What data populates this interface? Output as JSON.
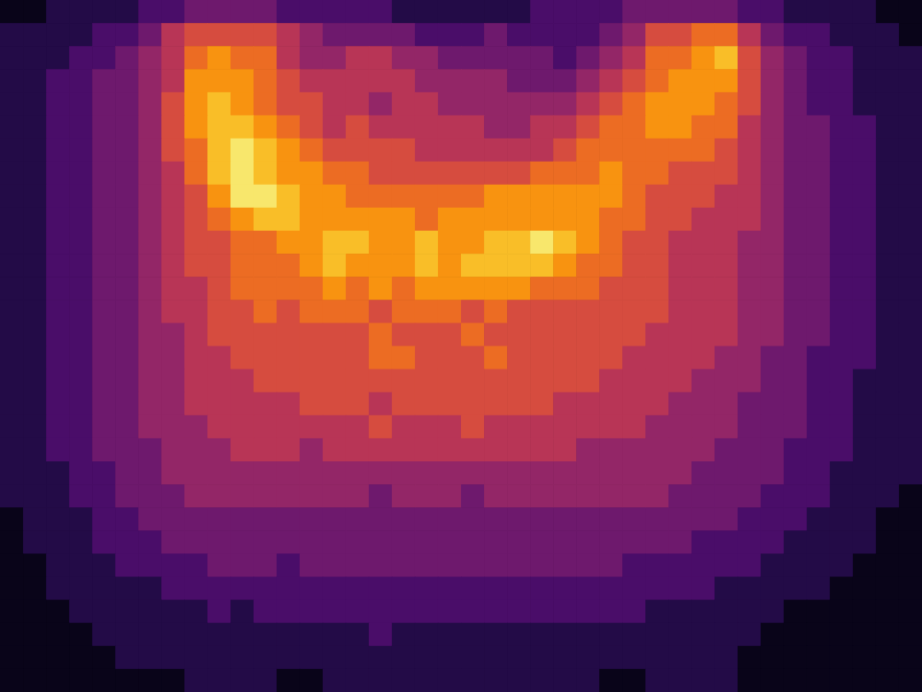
{
  "chart_data": {
    "type": "heatmap",
    "tick_labels": false,
    "cells": [
      [
        0,
        0,
        1,
        1,
        1,
        1,
        2,
        2,
        3,
        3,
        3,
        3,
        2,
        2,
        2,
        2,
        2,
        1,
        1,
        1,
        1,
        1,
        1,
        2,
        2,
        2,
        2,
        3,
        3,
        3,
        3,
        3,
        2,
        2,
        1,
        1,
        1,
        1,
        0,
        0
      ],
      [
        1,
        1,
        1,
        1,
        2,
        2,
        3,
        5,
        6,
        6,
        6,
        6,
        5,
        4,
        3,
        3,
        3,
        3,
        2,
        2,
        2,
        3,
        2,
        2,
        2,
        2,
        3,
        4,
        6,
        6,
        7,
        7,
        5,
        3,
        2,
        2,
        1,
        1,
        1,
        0
      ],
      [
        1,
        1,
        1,
        2,
        2,
        3,
        4,
        5,
        7,
        8,
        7,
        7,
        5,
        4,
        4,
        5,
        5,
        4,
        4,
        3,
        3,
        3,
        3,
        3,
        2,
        3,
        4,
        5,
        7,
        7,
        8,
        9,
        6,
        4,
        3,
        2,
        2,
        1,
        1,
        1
      ],
      [
        1,
        1,
        2,
        2,
        3,
        3,
        4,
        5,
        8,
        8,
        8,
        7,
        6,
        5,
        5,
        5,
        5,
        5,
        4,
        4,
        4,
        4,
        3,
        3,
        3,
        4,
        5,
        6,
        7,
        8,
        8,
        8,
        6,
        4,
        3,
        2,
        2,
        1,
        1,
        1
      ],
      [
        1,
        1,
        2,
        2,
        3,
        3,
        4,
        6,
        8,
        9,
        8,
        7,
        6,
        6,
        5,
        5,
        4,
        5,
        5,
        4,
        4,
        4,
        4,
        4,
        4,
        5,
        6,
        7,
        8,
        8,
        8,
        7,
        6,
        4,
        3,
        2,
        2,
        1,
        1,
        1
      ],
      [
        1,
        1,
        2,
        2,
        3,
        3,
        4,
        6,
        8,
        9,
        9,
        8,
        7,
        6,
        5,
        6,
        5,
        5,
        5,
        5,
        5,
        4,
        4,
        5,
        5,
        6,
        7,
        7,
        8,
        8,
        7,
        7,
        5,
        4,
        3,
        3,
        2,
        2,
        1,
        1
      ],
      [
        1,
        1,
        2,
        2,
        3,
        3,
        4,
        6,
        7,
        9,
        10,
        9,
        8,
        7,
        6,
        6,
        6,
        6,
        5,
        5,
        5,
        5,
        5,
        5,
        6,
        7,
        7,
        7,
        7,
        7,
        7,
        6,
        5,
        4,
        3,
        3,
        2,
        2,
        1,
        1
      ],
      [
        1,
        1,
        2,
        2,
        3,
        3,
        4,
        5,
        7,
        9,
        10,
        9,
        8,
        8,
        7,
        7,
        6,
        6,
        6,
        6,
        6,
        6,
        6,
        7,
        7,
        7,
        8,
        7,
        7,
        6,
        6,
        6,
        5,
        4,
        3,
        3,
        2,
        2,
        1,
        1
      ],
      [
        1,
        1,
        2,
        2,
        3,
        3,
        4,
        5,
        6,
        8,
        10,
        10,
        9,
        8,
        8,
        7,
        7,
        7,
        7,
        7,
        7,
        8,
        8,
        8,
        8,
        8,
        8,
        7,
        6,
        6,
        6,
        5,
        5,
        4,
        3,
        3,
        2,
        2,
        1,
        1
      ],
      [
        1,
        1,
        2,
        2,
        3,
        3,
        4,
        5,
        6,
        7,
        8,
        9,
        9,
        8,
        8,
        8,
        8,
        8,
        7,
        8,
        8,
        8,
        8,
        8,
        8,
        8,
        7,
        7,
        6,
        6,
        5,
        5,
        5,
        4,
        3,
        3,
        2,
        2,
        1,
        1
      ],
      [
        1,
        1,
        2,
        2,
        3,
        3,
        4,
        5,
        6,
        6,
        7,
        7,
        8,
        8,
        9,
        9,
        8,
        8,
        9,
        8,
        8,
        9,
        9,
        10,
        9,
        8,
        7,
        6,
        6,
        5,
        5,
        5,
        4,
        4,
        3,
        3,
        2,
        2,
        1,
        1
      ],
      [
        1,
        1,
        2,
        2,
        3,
        3,
        4,
        5,
        6,
        6,
        7,
        7,
        7,
        8,
        9,
        8,
        8,
        8,
        9,
        8,
        9,
        9,
        9,
        9,
        8,
        7,
        7,
        6,
        6,
        5,
        5,
        5,
        4,
        4,
        3,
        3,
        2,
        2,
        1,
        1
      ],
      [
        1,
        1,
        2,
        2,
        3,
        3,
        4,
        5,
        5,
        6,
        7,
        7,
        7,
        7,
        8,
        7,
        8,
        7,
        8,
        8,
        8,
        8,
        8,
        7,
        7,
        7,
        6,
        6,
        6,
        5,
        5,
        5,
        4,
        4,
        3,
        3,
        2,
        2,
        1,
        1
      ],
      [
        1,
        1,
        2,
        2,
        3,
        3,
        4,
        5,
        5,
        6,
        6,
        7,
        6,
        7,
        7,
        7,
        6,
        7,
        7,
        7,
        6,
        7,
        6,
        6,
        6,
        6,
        6,
        6,
        6,
        5,
        5,
        5,
        4,
        4,
        3,
        3,
        2,
        2,
        1,
        1
      ],
      [
        1,
        1,
        2,
        2,
        3,
        3,
        4,
        4,
        5,
        6,
        6,
        6,
        6,
        6,
        6,
        6,
        7,
        6,
        6,
        6,
        7,
        6,
        6,
        6,
        6,
        6,
        6,
        6,
        5,
        5,
        5,
        5,
        4,
        4,
        3,
        3,
        2,
        2,
        1,
        1
      ],
      [
        1,
        1,
        2,
        2,
        3,
        3,
        4,
        4,
        5,
        5,
        6,
        6,
        6,
        6,
        6,
        6,
        7,
        7,
        6,
        6,
        6,
        7,
        6,
        6,
        6,
        6,
        6,
        5,
        5,
        5,
        5,
        4,
        4,
        3,
        3,
        2,
        2,
        2,
        1,
        1
      ],
      [
        1,
        1,
        2,
        2,
        3,
        3,
        4,
        4,
        5,
        5,
        5,
        6,
        6,
        6,
        6,
        6,
        6,
        6,
        6,
        6,
        6,
        6,
        6,
        6,
        6,
        6,
        5,
        5,
        5,
        5,
        4,
        4,
        4,
        3,
        3,
        2,
        2,
        1,
        1,
        1
      ],
      [
        1,
        1,
        2,
        2,
        3,
        3,
        4,
        4,
        5,
        5,
        5,
        5,
        5,
        6,
        6,
        6,
        5,
        6,
        6,
        6,
        6,
        6,
        6,
        6,
        5,
        5,
        5,
        5,
        5,
        4,
        4,
        4,
        3,
        3,
        3,
        2,
        2,
        1,
        1,
        1
      ],
      [
        1,
        1,
        2,
        2,
        3,
        3,
        4,
        4,
        4,
        5,
        5,
        5,
        5,
        5,
        5,
        5,
        6,
        5,
        5,
        5,
        6,
        5,
        5,
        5,
        5,
        5,
        5,
        5,
        4,
        4,
        4,
        4,
        3,
        3,
        3,
        2,
        2,
        1,
        1,
        1
      ],
      [
        1,
        1,
        2,
        2,
        3,
        3,
        3,
        4,
        4,
        4,
        5,
        5,
        5,
        4,
        5,
        5,
        5,
        5,
        5,
        5,
        5,
        5,
        5,
        5,
        5,
        4,
        4,
        4,
        4,
        4,
        4,
        3,
        3,
        3,
        2,
        2,
        2,
        1,
        1,
        1
      ],
      [
        1,
        1,
        1,
        2,
        2,
        3,
        3,
        4,
        4,
        4,
        4,
        4,
        4,
        4,
        4,
        4,
        4,
        4,
        4,
        4,
        4,
        4,
        4,
        4,
        4,
        4,
        4,
        4,
        4,
        4,
        3,
        3,
        3,
        3,
        2,
        2,
        1,
        1,
        1,
        1
      ],
      [
        1,
        1,
        1,
        2,
        2,
        3,
        3,
        3,
        4,
        4,
        4,
        4,
        4,
        4,
        4,
        4,
        3,
        4,
        4,
        4,
        3,
        4,
        4,
        4,
        4,
        4,
        4,
        4,
        4,
        3,
        3,
        3,
        3,
        2,
        2,
        2,
        1,
        1,
        1,
        0
      ],
      [
        0,
        1,
        1,
        1,
        2,
        2,
        3,
        3,
        3,
        3,
        3,
        3,
        3,
        3,
        3,
        3,
        3,
        3,
        3,
        3,
        3,
        3,
        3,
        3,
        3,
        3,
        3,
        3,
        3,
        3,
        3,
        3,
        2,
        2,
        2,
        1,
        1,
        1,
        0,
        0
      ],
      [
        0,
        1,
        1,
        1,
        2,
        2,
        2,
        3,
        3,
        3,
        3,
        3,
        3,
        3,
        3,
        3,
        3,
        3,
        3,
        3,
        3,
        3,
        3,
        3,
        3,
        3,
        3,
        3,
        3,
        3,
        2,
        2,
        2,
        2,
        1,
        1,
        1,
        1,
        0,
        0
      ],
      [
        0,
        0,
        1,
        1,
        1,
        2,
        2,
        2,
        2,
        3,
        3,
        3,
        2,
        3,
        3,
        3,
        3,
        3,
        3,
        3,
        3,
        3,
        3,
        3,
        3,
        3,
        3,
        2,
        2,
        2,
        2,
        2,
        2,
        1,
        1,
        1,
        1,
        0,
        0,
        0
      ],
      [
        0,
        0,
        1,
        1,
        1,
        1,
        1,
        2,
        2,
        2,
        2,
        2,
        2,
        2,
        2,
        2,
        2,
        2,
        2,
        2,
        2,
        2,
        2,
        2,
        2,
        2,
        2,
        2,
        2,
        2,
        2,
        1,
        1,
        1,
        1,
        1,
        0,
        0,
        0,
        0
      ],
      [
        0,
        0,
        0,
        1,
        1,
        1,
        1,
        1,
        1,
        2,
        1,
        2,
        2,
        2,
        2,
        2,
        2,
        2,
        2,
        2,
        2,
        2,
        2,
        2,
        2,
        2,
        2,
        2,
        1,
        1,
        1,
        1,
        1,
        1,
        0,
        0,
        0,
        0,
        0,
        0
      ],
      [
        0,
        0,
        0,
        0,
        1,
        1,
        1,
        1,
        1,
        1,
        1,
        1,
        1,
        1,
        1,
        1,
        2,
        1,
        1,
        1,
        1,
        1,
        1,
        1,
        1,
        1,
        1,
        1,
        1,
        1,
        1,
        1,
        1,
        0,
        0,
        0,
        0,
        0,
        0,
        0
      ],
      [
        0,
        0,
        0,
        0,
        0,
        1,
        1,
        1,
        1,
        1,
        1,
        1,
        1,
        1,
        1,
        1,
        1,
        1,
        1,
        1,
        1,
        1,
        1,
        1,
        1,
        1,
        1,
        1,
        1,
        1,
        1,
        1,
        0,
        0,
        0,
        0,
        0,
        0,
        0,
        0
      ],
      [
        0,
        0,
        0,
        0,
        0,
        0,
        0,
        0,
        1,
        1,
        1,
        1,
        0,
        0,
        1,
        1,
        1,
        1,
        1,
        1,
        1,
        1,
        1,
        1,
        1,
        1,
        0,
        0,
        1,
        1,
        1,
        1,
        0,
        0,
        0,
        0,
        0,
        0,
        0,
        0
      ]
    ]
  }
}
